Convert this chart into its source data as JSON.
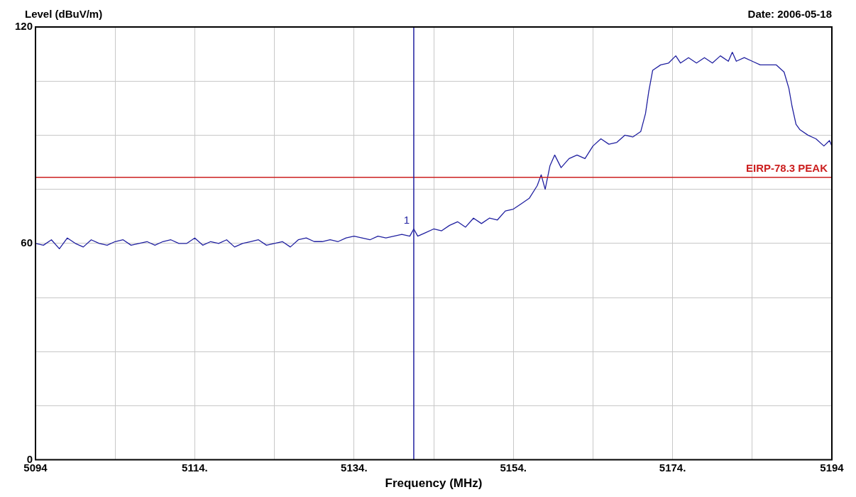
{
  "chart_data": {
    "type": "line",
    "ylabel": "Level (dBuV/m)",
    "xlabel": "Frequency (MHz)",
    "annotations": [
      "Date: 2006-05-18",
      {
        "text": "1",
        "x": 5141.5,
        "y": 64
      }
    ],
    "xlim": [
      5094,
      5194
    ],
    "xticks": [
      5094,
      {
        "value": 5104,
        "label": null
      },
      {
        "value": 5114,
        "label": "5114."
      },
      {
        "value": 5124,
        "label": null
      },
      {
        "value": 5134,
        "label": "5134."
      },
      {
        "value": 5144,
        "label": null
      },
      {
        "value": 5154,
        "label": "5154."
      },
      {
        "value": 5164,
        "label": null
      },
      {
        "value": 5174,
        "label": "5174."
      },
      {
        "value": 5184,
        "label": null
      },
      5194
    ],
    "ylim": [
      0,
      120
    ],
    "yticks": [
      0,
      {
        "value": 15,
        "label": null
      },
      {
        "value": 30,
        "label": null
      },
      {
        "value": 45,
        "label": null
      },
      60,
      {
        "value": 75,
        "label": null
      },
      {
        "value": 90,
        "label": null
      },
      {
        "value": 105,
        "label": null
      },
      120
    ],
    "grid": true,
    "legend": false,
    "marker": "none",
    "line_style": "solid",
    "ref_lines": [
      {
        "axis": "y",
        "value": 78.3,
        "label": "EIRP-78.3 PEAK",
        "color": "#cc2020"
      },
      {
        "axis": "x",
        "value": 5141.5,
        "color": "#2020a0"
      }
    ],
    "series": [
      {
        "color": "#2020a0",
        "x": [
          5094,
          5095,
          5096,
          5097,
          5098,
          5099,
          5100,
          5101,
          5102,
          5103,
          5104,
          5105,
          5106,
          5107,
          5108,
          5109,
          5110,
          5111,
          5112,
          5113,
          5114,
          5115,
          5116,
          5117,
          5118,
          5119,
          5120,
          5121,
          5122,
          5123,
          5124,
          5125,
          5126,
          5127,
          5128,
          5129,
          5130,
          5131,
          5132,
          5133,
          5134,
          5135,
          5136,
          5137,
          5138,
          5139,
          5140,
          5141,
          5141.5,
          5142,
          5143,
          5144,
          5145,
          5146,
          5147,
          5148,
          5149,
          5150,
          5151,
          5152,
          5153,
          5154,
          5155,
          5156,
          5157,
          5157.5,
          5158,
          5158.6,
          5159.2,
          5160,
          5161,
          5162,
          5163,
          5164,
          5165,
          5166,
          5167,
          5168,
          5169,
          5170,
          5170.6,
          5171,
          5171.5,
          5172.5,
          5173.5,
          5174.4,
          5175,
          5176,
          5177,
          5178,
          5179,
          5180,
          5181,
          5181.5,
          5182,
          5183,
          5184,
          5185,
          5186,
          5187,
          5188,
          5188.6,
          5189,
          5189.5,
          5190,
          5191,
          5192,
          5193,
          5193.7,
          5194
        ],
        "values": [
          60,
          59.5,
          61,
          58.5,
          61.5,
          60,
          59,
          61,
          60,
          59.5,
          60.5,
          61,
          59.5,
          60,
          60.5,
          59.5,
          60.5,
          61,
          60,
          60,
          61.5,
          59.5,
          60.5,
          60,
          61,
          59,
          60,
          60.5,
          61,
          59.5,
          60,
          60.5,
          59,
          61,
          61.5,
          60.5,
          60.5,
          61,
          60.5,
          61.5,
          62,
          61.5,
          61,
          62,
          61.5,
          62,
          62.5,
          62,
          64,
          62,
          63,
          64,
          63.5,
          65,
          66,
          64.5,
          67,
          65.5,
          67,
          66.5,
          69,
          69.5,
          71,
          72.5,
          76,
          79,
          75,
          81.5,
          84.5,
          81,
          83.5,
          84.5,
          83.5,
          87,
          89,
          87.5,
          88,
          90,
          89.5,
          91,
          96,
          102,
          108,
          109.5,
          110,
          112,
          110,
          111.5,
          110,
          111.5,
          110,
          112,
          110.5,
          113,
          110.5,
          111.5,
          110.5,
          109.5,
          109.5,
          109.5,
          107.5,
          103,
          98,
          93,
          91.5,
          90,
          89,
          87,
          88.5,
          87
        ]
      }
    ]
  }
}
